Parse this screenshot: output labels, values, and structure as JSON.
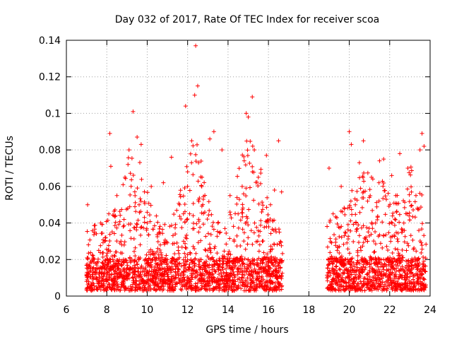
{
  "chart_data": {
    "type": "scatter",
    "title": "Day 032 of 2017, Rate Of TEC Index for receiver scoa",
    "xlabel": "GPS time / hours",
    "ylabel": "ROTI / TECUs",
    "xlim": [
      6,
      24
    ],
    "ylim": [
      0,
      0.14
    ],
    "x_ticks": [
      6,
      8,
      10,
      12,
      14,
      16,
      18,
      20,
      22,
      24
    ],
    "x_tick_labels": [
      "6",
      "8",
      "10",
      "12",
      "14",
      "16",
      "18",
      "20",
      "22",
      "24"
    ],
    "y_ticks": [
      0,
      0.02,
      0.04,
      0.06,
      0.08,
      0.1,
      0.12,
      0.14
    ],
    "y_tick_labels": [
      "0",
      "0.02",
      "0.04",
      "0.06",
      "0.08",
      "0.1",
      "0.12",
      "0.14"
    ],
    "grid": true,
    "marker": "+",
    "series_color": "#ff0000",
    "data_gap_hours": [
      16.7,
      18.9
    ],
    "series": [
      {
        "name": "ROTI",
        "x": [
          7.0,
          7.05,
          7.1,
          7.2,
          7.3,
          7.4,
          7.5,
          7.6,
          7.7,
          7.8,
          7.9,
          8.0,
          8.1,
          8.15,
          8.2,
          8.3,
          8.5,
          8.7,
          8.9,
          9.0,
          9.1,
          9.3,
          9.4,
          9.5,
          9.6,
          9.7,
          9.8,
          10.0,
          10.2,
          10.4,
          10.6,
          10.8,
          11.0,
          11.2,
          11.4,
          11.6,
          11.8,
          11.9,
          12.0,
          12.1,
          12.2,
          12.35,
          12.4,
          12.5,
          12.7,
          12.9,
          13.1,
          13.3,
          13.5,
          13.7,
          13.9,
          14.1,
          14.3,
          14.5,
          14.7,
          14.8,
          14.9,
          15.0,
          15.2,
          15.3,
          15.5,
          15.7,
          15.9,
          16.1,
          16.3,
          16.5,
          16.65,
          18.9,
          19.0,
          19.2,
          19.4,
          19.6,
          19.8,
          20.0,
          20.1,
          20.3,
          20.5,
          20.7,
          20.9,
          21.1,
          21.3,
          21.5,
          21.7,
          21.9,
          22.1,
          22.3,
          22.5,
          22.7,
          22.9,
          23.1,
          23.3,
          23.5,
          23.6,
          23.7
        ],
        "y": [
          0.012,
          0.05,
          0.008,
          0.015,
          0.02,
          0.035,
          0.01,
          0.025,
          0.04,
          0.018,
          0.03,
          0.012,
          0.045,
          0.089,
          0.071,
          0.02,
          0.055,
          0.03,
          0.065,
          0.012,
          0.08,
          0.101,
          0.022,
          0.087,
          0.05,
          0.083,
          0.015,
          0.04,
          0.06,
          0.01,
          0.035,
          0.062,
          0.02,
          0.076,
          0.015,
          0.05,
          0.03,
          0.104,
          0.068,
          0.045,
          0.085,
          0.11,
          0.137,
          0.115,
          0.06,
          0.025,
          0.086,
          0.09,
          0.04,
          0.08,
          0.015,
          0.055,
          0.03,
          0.045,
          0.06,
          0.074,
          0.1,
          0.098,
          0.109,
          0.08,
          0.065,
          0.03,
          0.077,
          0.05,
          0.058,
          0.085,
          0.057,
          0.01,
          0.07,
          0.045,
          0.025,
          0.06,
          0.035,
          0.09,
          0.083,
          0.05,
          0.073,
          0.085,
          0.03,
          0.065,
          0.04,
          0.074,
          0.075,
          0.02,
          0.066,
          0.055,
          0.078,
          0.04,
          0.07,
          0.015,
          0.055,
          0.08,
          0.089,
          0.082
        ]
      }
    ]
  }
}
